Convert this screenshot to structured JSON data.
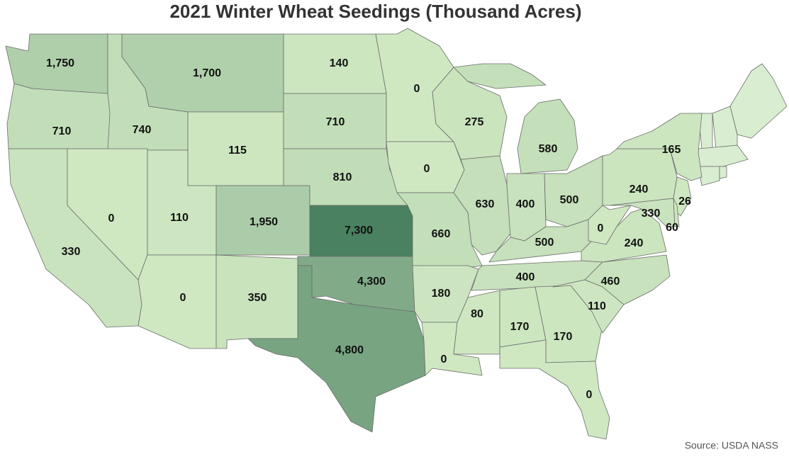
{
  "chart_data": {
    "type": "choropleth",
    "title": "2021 Winter Wheat Seedings (Thousand Acres)",
    "source": "Source: USDA NASS",
    "color_range": [
      "#cfe8c2",
      "#4a8160"
    ],
    "values": [
      1750,
      710,
      740,
      1700,
      330,
      0,
      110,
      115,
      0,
      1950,
      350,
      140,
      710,
      810,
      7300,
      4300,
      4800,
      0,
      0,
      660,
      180,
      0,
      275,
      630,
      580,
      400,
      500,
      500,
      400,
      80,
      170,
      170,
      0,
      110,
      460,
      240,
      0,
      240,
      165,
      26,
      330,
      60
    ],
    "value_labels": [
      "1,750",
      "710",
      "740",
      "1,700",
      "330",
      "0",
      "110",
      "115",
      "0",
      "1,950",
      "350",
      "140",
      "710",
      "810",
      "7,300",
      "4,300",
      "4,800",
      "0",
      "0",
      "660",
      "180",
      "0",
      "275",
      "630",
      "580",
      "400",
      "500",
      "500",
      "400",
      "80",
      "170",
      "170",
      "0",
      "110",
      "460",
      "240",
      "0",
      "240",
      "165",
      "26",
      "330",
      "60"
    ]
  }
}
